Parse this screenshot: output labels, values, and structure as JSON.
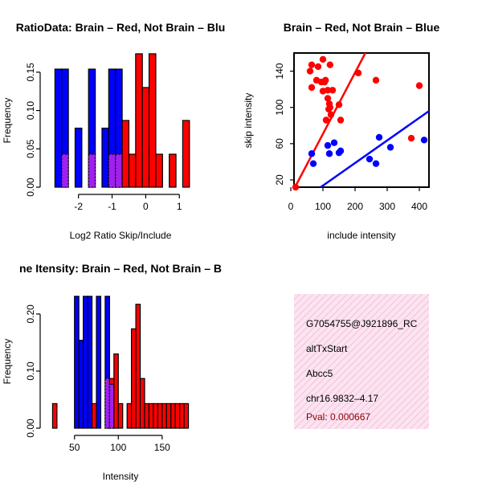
{
  "colors": {
    "brain": "#ff0000",
    "notBrain": "#0000ff",
    "overlap": "#a020f0",
    "pval": "#8b0000",
    "info_bg": "#fbe4f0",
    "info_hatch": "#f3c0dc"
  },
  "chart_data": [
    {
      "type": "bar",
      "title": "RatioData: Brain – Red, Not Brain – Blu",
      "xlabel": "Log2 Ratio Skip/Include",
      "ylabel": "Frequency",
      "xlim": [
        -2.9,
        1.4
      ],
      "ylim": [
        0,
        0.175
      ],
      "xticks": [
        -2,
        -1,
        0,
        1
      ],
      "yticks": [
        0.0,
        0.05,
        0.1,
        0.15
      ],
      "ytick_labels": [
        "0.00",
        "0.05",
        "0.10",
        "0.15"
      ],
      "bin_width": 0.2,
      "series": [
        {
          "name": "Not Brain",
          "bins": [
            {
              "x0": -2.7,
              "value": 0.154
            },
            {
              "x0": -2.5,
              "value": 0.154
            },
            {
              "x0": -2.1,
              "value": 0.077
            },
            {
              "x0": -1.7,
              "value": 0.154
            },
            {
              "x0": -1.3,
              "value": 0.077
            },
            {
              "x0": -1.1,
              "value": 0.154
            },
            {
              "x0": -0.9,
              "value": 0.154
            }
          ]
        },
        {
          "name": "Brain",
          "bins": [
            {
              "x0": -2.5,
              "value": 0.043
            },
            {
              "x0": -1.7,
              "value": 0.043
            },
            {
              "x0": -1.1,
              "value": 0.043
            },
            {
              "x0": -0.9,
              "value": 0.043
            },
            {
              "x0": -0.7,
              "value": 0.087
            },
            {
              "x0": -0.5,
              "value": 0.043
            },
            {
              "x0": -0.3,
              "value": 0.174
            },
            {
              "x0": -0.1,
              "value": 0.13
            },
            {
              "x0": 0.1,
              "value": 0.174
            },
            {
              "x0": 0.3,
              "value": 0.043
            },
            {
              "x0": 0.7,
              "value": 0.043
            },
            {
              "x0": 1.1,
              "value": 0.087
            }
          ]
        }
      ]
    },
    {
      "type": "scatter",
      "title": "Brain – Red, Not Brain – Blue",
      "xlabel": "include intensity",
      "ylabel": "skip intensity",
      "xlim": [
        10,
        430
      ],
      "ylim": [
        12,
        160
      ],
      "xticks": [
        0,
        100,
        200,
        300,
        400
      ],
      "yticks": [
        20,
        60,
        100,
        140
      ],
      "series": [
        {
          "name": "Brain",
          "points": [
            [
              15,
              12
            ],
            [
              60,
              140
            ],
            [
              65,
              147
            ],
            [
              65,
              122
            ],
            [
              80,
              130
            ],
            [
              85,
              145
            ],
            [
              95,
              128
            ],
            [
              100,
              118
            ],
            [
              100,
              153
            ],
            [
              105,
              128
            ],
            [
              108,
              130
            ],
            [
              110,
              86
            ],
            [
              115,
              119
            ],
            [
              115,
              110
            ],
            [
              118,
              98
            ],
            [
              120,
              104
            ],
            [
              122,
              147
            ],
            [
              122,
              100
            ],
            [
              125,
              92
            ],
            [
              130,
              119
            ],
            [
              150,
              103
            ],
            [
              155,
              86
            ],
            [
              210,
              138
            ],
            [
              265,
              130
            ],
            [
              375,
              66
            ],
            [
              400,
              124
            ]
          ]
        },
        {
          "name": "Not Brain",
          "points": [
            [
              65,
              49
            ],
            [
              70,
              38
            ],
            [
              115,
              58
            ],
            [
              120,
              49
            ],
            [
              135,
              61
            ],
            [
              150,
              50
            ],
            [
              155,
              52
            ],
            [
              245,
              43
            ],
            [
              265,
              38
            ],
            [
              275,
              67
            ],
            [
              310,
              56
            ],
            [
              415,
              64
            ]
          ]
        }
      ],
      "fit_lines": [
        {
          "name": "Brain",
          "from": [
            10,
            10
          ],
          "to": [
            232,
            160
          ]
        },
        {
          "name": "Not Brain",
          "from": [
            93,
            12
          ],
          "to": [
            430,
            96
          ]
        }
      ]
    },
    {
      "type": "bar",
      "title": "ne Itensity: Brain – Red, Not Brain – B",
      "xlabel": "Intensity",
      "ylabel": "Frequency",
      "xlim": [
        20,
        185
      ],
      "ylim": [
        0,
        0.235
      ],
      "xticks": [
        50,
        100,
        150
      ],
      "yticks": [
        0.0,
        0.1,
        0.2
      ],
      "ytick_labels": [
        "0.00",
        "0.10",
        "0.20"
      ],
      "bin_width": 5,
      "series": [
        {
          "name": "Not Brain",
          "bins": [
            {
              "x0": 50,
              "value": 0.231
            },
            {
              "x0": 55,
              "value": 0.154
            },
            {
              "x0": 60,
              "value": 0.231
            },
            {
              "x0": 65,
              "value": 0.231
            },
            {
              "x0": 75,
              "value": 0.231
            },
            {
              "x0": 85,
              "value": 0.231
            },
            {
              "x0": 90,
              "value": 0.077
            }
          ]
        },
        {
          "name": "Brain",
          "bins": [
            {
              "x0": 25,
              "value": 0.043
            },
            {
              "x0": 70,
              "value": 0.043
            },
            {
              "x0": 85,
              "value": 0.087
            },
            {
              "x0": 90,
              "value": 0.087
            },
            {
              "x0": 95,
              "value": 0.13
            },
            {
              "x0": 100,
              "value": 0.043
            },
            {
              "x0": 110,
              "value": 0.043
            },
            {
              "x0": 115,
              "value": 0.174
            },
            {
              "x0": 120,
              "value": 0.217
            },
            {
              "x0": 125,
              "value": 0.087
            },
            {
              "x0": 130,
              "value": 0.043
            },
            {
              "x0": 135,
              "value": 0.043
            },
            {
              "x0": 140,
              "value": 0.043
            },
            {
              "x0": 145,
              "value": 0.043
            },
            {
              "x0": 150,
              "value": 0.043
            },
            {
              "x0": 155,
              "value": 0.043
            },
            {
              "x0": 160,
              "value": 0.043
            },
            {
              "x0": 165,
              "value": 0.043
            },
            {
              "x0": 170,
              "value": 0.043
            },
            {
              "x0": 175,
              "value": 0.043
            }
          ]
        }
      ]
    }
  ],
  "info_box": {
    "id": "G7054755@J921896_RC",
    "event_type": "altTxStart",
    "gene": "Abcc5",
    "location": "chr16.9832–4.17",
    "pval": "Pval: 0.000667"
  }
}
